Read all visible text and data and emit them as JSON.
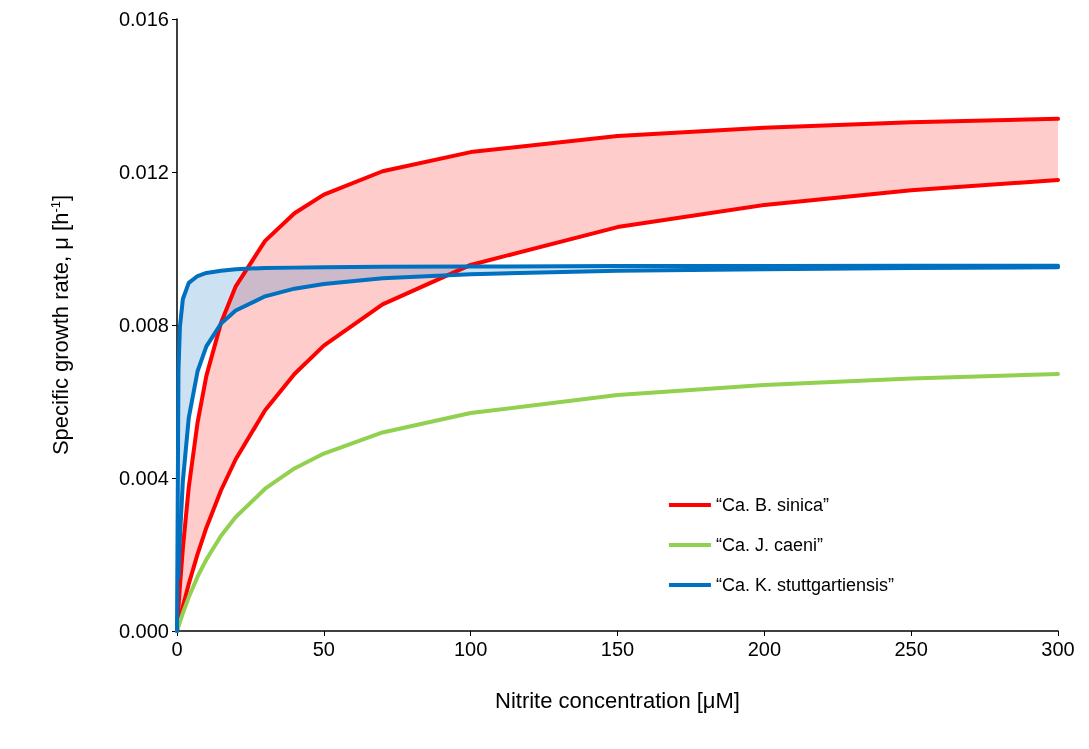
{
  "chart_data": {
    "type": "line",
    "xlabel": "Nitrite concentration [μM]",
    "ylabel": "Specific growth rate, μ [h$^{-1}$]",
    "x": [
      0,
      0.5,
      1,
      2,
      4,
      7,
      10,
      15,
      20,
      30,
      40,
      50,
      70,
      100,
      150,
      200,
      250,
      300
    ],
    "series": [
      {
        "name": "“Ca. B. sinica”",
        "color": "#ff0000",
        "values": [
          0,
          0.00061,
          0.00118,
          0.00217,
          0.00375,
          0.00545,
          0.00667,
          0.00806,
          0.00901,
          0.0102,
          0.01092,
          0.01141,
          0.01202,
          0.01252,
          0.01294,
          0.01316,
          0.0133,
          0.01339
        ],
        "lower": [
          0,
          0.00017,
          0.00033,
          0.00064,
          0.00123,
          0.00201,
          0.0027,
          0.00368,
          0.00449,
          0.00577,
          0.00672,
          0.00746,
          0.00854,
          0.00957,
          0.01056,
          0.01114,
          0.01152,
          0.01179
        ],
        "upper": [
          0,
          0.00061,
          0.00118,
          0.00217,
          0.00375,
          0.00545,
          0.00667,
          0.00806,
          0.00901,
          0.0102,
          0.01092,
          0.01141,
          0.01202,
          0.01252,
          0.01294,
          0.01316,
          0.0133,
          0.01339
        ]
      },
      {
        "color": "#ff0000",
        "values": [
          0,
          0.00017,
          0.00033,
          0.00064,
          0.00123,
          0.00201,
          0.0027,
          0.00368,
          0.00449,
          0.00577,
          0.00672,
          0.00746,
          0.00854,
          0.00957,
          0.01056,
          0.01114,
          0.01152,
          0.01179
        ]
      },
      {
        "name": "“Ca. J. caeni”",
        "color": "#92d050",
        "values": [
          0,
          0.00012,
          0.00024,
          0.00047,
          0.00088,
          0.00142,
          0.00187,
          0.00249,
          0.00298,
          0.00372,
          0.00425,
          0.00464,
          0.00519,
          0.0057,
          0.00617,
          0.00643,
          0.0066,
          0.00672
        ]
      },
      {
        "name": "“Ca. K. stuttgartiensis”",
        "color": "#0070c0",
        "values": [
          0,
          0.00682,
          0.00796,
          0.00868,
          0.0091,
          0.00928,
          0.00936,
          0.00942,
          0.00946,
          0.00949,
          0.0095,
          0.00951,
          0.00952,
          0.00953,
          0.00954,
          0.00954,
          0.00955,
          0.00955
        ],
        "lower": [
          0,
          0.00141,
          0.00246,
          0.00392,
          0.00557,
          0.00679,
          0.00744,
          0.00804,
          0.00838,
          0.00875,
          0.00895,
          0.00907,
          0.00922,
          0.00933,
          0.00942,
          0.00946,
          0.00949,
          0.00951
        ],
        "upper": [
          0,
          0.00682,
          0.00796,
          0.00868,
          0.0091,
          0.00928,
          0.00936,
          0.00942,
          0.00946,
          0.00949,
          0.0095,
          0.00951,
          0.00952,
          0.00953,
          0.00954,
          0.00954,
          0.00955,
          0.00955
        ]
      },
      {
        "color": "#0070c0",
        "values": [
          null,
          0.00141,
          0.00246,
          0.00392,
          0.00557,
          0.00679,
          0.00744,
          0.00804,
          0.00838,
          0.00875,
          0.00895,
          0.00907,
          0.00922,
          0.00933,
          0.00942,
          0.00946,
          0.00949,
          0.00951
        ]
      }
    ],
    "xlim": [
      0,
      300
    ],
    "xticks": [
      0,
      50,
      100,
      150,
      200,
      250,
      300
    ],
    "ylim": [
      0,
      0.016
    ],
    "yticks": [
      {
        "value": 0,
        "label": "0.000"
      },
      {
        "value": 0.004,
        "label": "0.004"
      },
      {
        "value": 0.008,
        "label": "0.008"
      },
      {
        "value": 0.012,
        "label": "0.012"
      },
      {
        "value": 0.016,
        "label": "0.016"
      }
    ],
    "legend": "bottom right",
    "marker": "none",
    "line_style": "solid"
  }
}
